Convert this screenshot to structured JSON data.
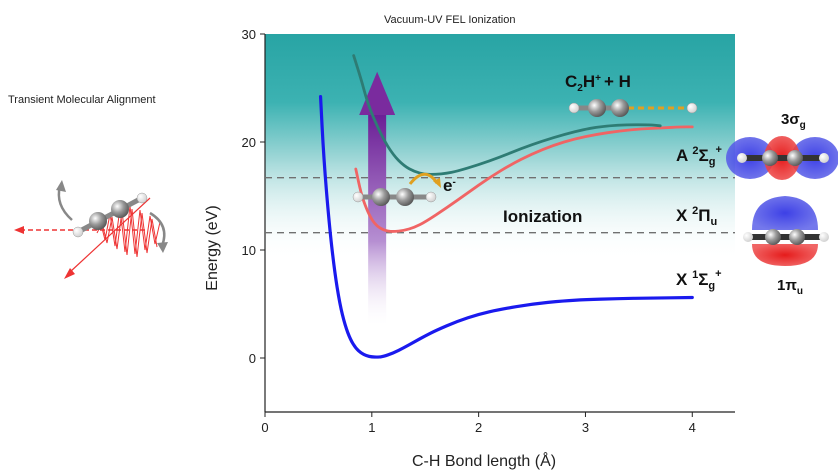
{
  "figure": {
    "title": "Vacuum-UV FEL  Ionization",
    "left_caption": "Transient Molecular Alignment",
    "ionization_label": "Ionization",
    "electron_label": "e",
    "electron_sup": "-",
    "fragment_label": {
      "a": "C",
      "a_sub": "2",
      "b": "H",
      "b_sup": "+",
      "c": "+  H"
    },
    "states": [
      {
        "id": "A",
        "letter": "A ",
        "sup": "2",
        "sym": "Σ",
        "sub": "g",
        "sup2": "+"
      },
      {
        "id": "X2",
        "letter": "X ",
        "sup": "2",
        "sym": "Π",
        "sub": "u",
        "sup2": ""
      },
      {
        "id": "X1",
        "letter": "X ",
        "sup": "1",
        "sym": "Σ",
        "sub": "g",
        "sup2": "+"
      }
    ],
    "orbitals": [
      {
        "id": "top",
        "main": "3σ",
        "sub": "g"
      },
      {
        "id": "bottom",
        "main": "1π",
        "sub": "u"
      }
    ],
    "colors": {
      "ground": "#1a1aee",
      "cation_x": "#f06464",
      "cation_a": "#2e7c74",
      "band_top": "#2ba8a8",
      "arrow": "#7a2b9e",
      "dashed": "#707070",
      "electron_arrow": "#e0a020"
    }
  },
  "chart_data": {
    "type": "line",
    "title": "Vacuum-UV FEL  Ionization",
    "xlabel": "C-H Bond length  (Å)",
    "ylabel": "Energy  (eV)",
    "xlim": [
      0,
      4.4
    ],
    "ylim": [
      -5,
      30
    ],
    "xticks": [
      "0",
      "1",
      "2",
      "3",
      "4"
    ],
    "yticks": [
      "0",
      "10",
      "20",
      "30"
    ],
    "dashed_levels": [
      16.7,
      11.6
    ],
    "series": [
      {
        "id": "ground",
        "x": [
          0.52,
          0.55,
          0.6,
          0.65,
          0.7,
          0.75,
          0.8,
          0.85,
          0.9,
          0.95,
          1.0,
          1.05,
          1.1,
          1.2,
          1.3,
          1.4,
          1.5,
          1.6,
          1.8,
          2.0,
          2.2,
          2.5,
          2.8,
          3.0,
          3.3,
          3.6,
          4.0
        ],
        "y": [
          24.2,
          18.5,
          12.5,
          8.1,
          5.0,
          3.0,
          1.7,
          0.9,
          0.45,
          0.2,
          0.1,
          0.08,
          0.12,
          0.45,
          0.95,
          1.5,
          2.05,
          2.55,
          3.4,
          4.05,
          4.5,
          5.0,
          5.3,
          5.4,
          5.5,
          5.55,
          5.6
        ]
      },
      {
        "id": "cation_x",
        "x": [
          0.85,
          0.9,
          0.95,
          1.0,
          1.05,
          1.1,
          1.15,
          1.2,
          1.3,
          1.4,
          1.5,
          1.7,
          1.9,
          2.1,
          2.3,
          2.5,
          2.7,
          2.9,
          3.1,
          3.3,
          3.5,
          3.7,
          3.9,
          4.0
        ],
        "y": [
          17.5,
          15.2,
          13.8,
          12.8,
          12.2,
          11.9,
          11.75,
          11.7,
          11.8,
          12.1,
          12.6,
          13.9,
          15.3,
          16.7,
          17.9,
          18.9,
          19.7,
          20.3,
          20.7,
          21.0,
          21.2,
          21.3,
          21.4,
          21.4
        ]
      },
      {
        "id": "cation_a",
        "x": [
          0.83,
          0.9,
          0.95,
          1.0,
          1.1,
          1.2,
          1.3,
          1.4,
          1.5,
          1.6,
          1.7,
          1.8,
          2.0,
          2.2,
          2.4,
          2.6,
          2.8,
          3.0,
          3.2,
          3.4,
          3.6,
          3.7
        ],
        "y": [
          28.0,
          25.8,
          24.0,
          22.6,
          20.4,
          18.8,
          17.8,
          17.25,
          17.0,
          17.0,
          17.1,
          17.3,
          17.9,
          18.6,
          19.4,
          20.1,
          20.7,
          21.2,
          21.5,
          21.6,
          21.6,
          21.5
        ]
      }
    ]
  }
}
